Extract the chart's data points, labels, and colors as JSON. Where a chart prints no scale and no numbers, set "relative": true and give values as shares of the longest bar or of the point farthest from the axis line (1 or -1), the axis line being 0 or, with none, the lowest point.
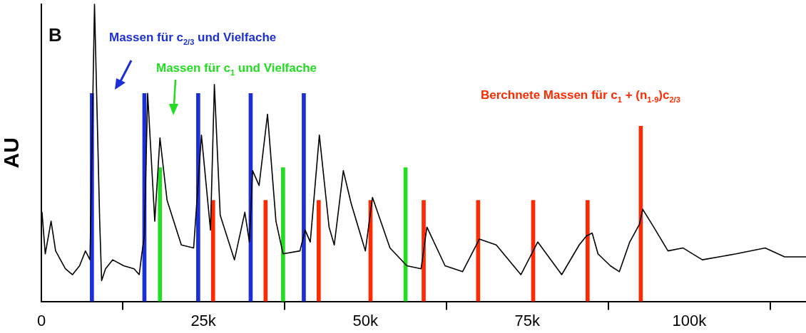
{
  "chart_data": {
    "type": "line",
    "relative": true,
    "ylabel": "AU",
    "tick_labels": "x",
    "grid": false,
    "legend": false,
    "xlim": [
      0,
      118000
    ],
    "xticks": [
      0,
      {
        "value": 25000,
        "label": "25k"
      },
      {
        "value": 50000,
        "label": "50k"
      },
      {
        "value": 75000,
        "label": "75k"
      },
      {
        "value": 100000,
        "label": "100k"
      }
    ],
    "annotations": [
      "B",
      "Massen für c$_{2/3}$ und Vielfache",
      "Massen für c$_{1}$ und Vielfache",
      "Berchnete Massen für c$_{1}$ + (n$_{1-9}$)c$_{2/3}$"
    ],
    "series": [
      {
        "color": "#000000",
        "x": [
          100,
          600,
          1500,
          2200,
          3700,
          4800,
          5900,
          6800,
          7500,
          8200,
          9000,
          9300,
          9900,
          11000,
          12700,
          14300,
          15100,
          15500,
          15900,
          16400,
          17500,
          18300,
          19400,
          21600,
          23500,
          24700,
          26100,
          26700,
          27600,
          29800,
          31400,
          32100,
          32600,
          33600,
          34900,
          36200,
          37300,
          39900,
          40700,
          41500,
          42900,
          44400,
          45200,
          46600,
          47800,
          50000,
          51100,
          53800,
          56400,
          58600,
          59500,
          62300,
          65000,
          67600,
          70200,
          74000,
          76600,
          80300,
          83000,
          84100,
          85000,
          85900,
          87800,
          89200,
          90800,
          92300,
          92800,
          94500,
          96700,
          99000,
          102000,
          107200,
          111700,
          114700,
          118000
        ],
        "values": [
          0.3,
          0.16,
          0.27,
          0.17,
          0.11,
          0.09,
          0.12,
          0.17,
          0.14,
          1.0,
          0.27,
          0.07,
          0.11,
          0.14,
          0.12,
          0.11,
          0.09,
          0.16,
          0.22,
          0.7,
          0.27,
          0.55,
          0.34,
          0.19,
          0.18,
          0.56,
          0.24,
          0.73,
          0.29,
          0.14,
          0.3,
          0.2,
          0.44,
          0.39,
          0.63,
          0.27,
          0.16,
          0.17,
          0.24,
          0.2,
          0.56,
          0.25,
          0.19,
          0.44,
          0.33,
          0.17,
          0.35,
          0.18,
          0.12,
          0.11,
          0.25,
          0.12,
          0.1,
          0.21,
          0.19,
          0.09,
          0.2,
          0.09,
          0.19,
          0.22,
          0.23,
          0.16,
          0.12,
          0.1,
          0.2,
          0.26,
          0.31,
          0.25,
          0.17,
          0.18,
          0.14,
          0.16,
          0.18,
          0.15,
          0.15
        ]
      },
      {
        "type": "bar",
        "color": "#1a2fd8",
        "x": [
          7800,
          15900,
          24200,
          32300,
          40500
        ],
        "values": [
          0.7,
          0.7,
          0.7,
          0.7,
          0.7
        ]
      },
      {
        "type": "bar",
        "color": "#22dd22",
        "x": [
          18300,
          37300,
          56200
        ],
        "values": [
          0.45,
          0.45,
          0.45
        ]
      },
      {
        "type": "bar",
        "color": "#ff2a00",
        "x": [
          26500,
          34600,
          42800,
          50800,
          59000,
          67400,
          75900,
          84300,
          92500
        ],
        "values": [
          0.34,
          0.34,
          0.34,
          0.34,
          0.34,
          0.34,
          0.34,
          0.34,
          0.59
        ]
      }
    ]
  }
}
